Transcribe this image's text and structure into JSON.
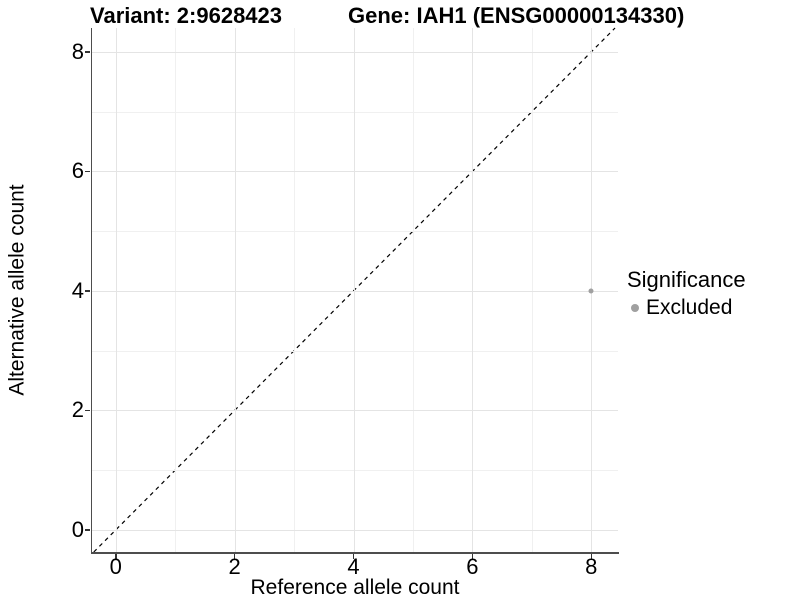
{
  "titles": {
    "variant": "Variant: 2:9628423",
    "gene": "Gene: IAH1 (ENSG00000134330)"
  },
  "chart_data": {
    "type": "scatter",
    "title": "Variant: 2:9628423  /  Gene: IAH1 (ENSG00000134330)",
    "xlabel": "Reference allele count",
    "ylabel": "Alternative allele count",
    "xlim": [
      -0.4,
      8.45
    ],
    "ylim": [
      -0.37,
      8.4
    ],
    "x_ticks": [
      0,
      2,
      4,
      6,
      8
    ],
    "y_ticks": [
      0,
      2,
      4,
      6,
      8
    ],
    "x_minor": [
      1,
      3,
      5,
      7
    ],
    "y_minor": [
      1,
      3,
      5,
      7
    ],
    "grid": true,
    "points": [
      {
        "x": 8,
        "y": 4,
        "series": "Excluded"
      }
    ],
    "identity_line": {
      "style": "dashed",
      "equation": "y = x",
      "color": "#000000"
    },
    "legend": {
      "title": "Significance",
      "position": "right",
      "items": [
        {
          "label": "Excluded",
          "color": "#a0a0a0"
        }
      ]
    }
  },
  "colors": {
    "background": "#ffffff",
    "axis_line": "#4d4d4d",
    "grid_major": "#e4e4e4",
    "grid_minor": "#f0f0f0",
    "point": "#a0a0a0",
    "text": "#000000"
  }
}
